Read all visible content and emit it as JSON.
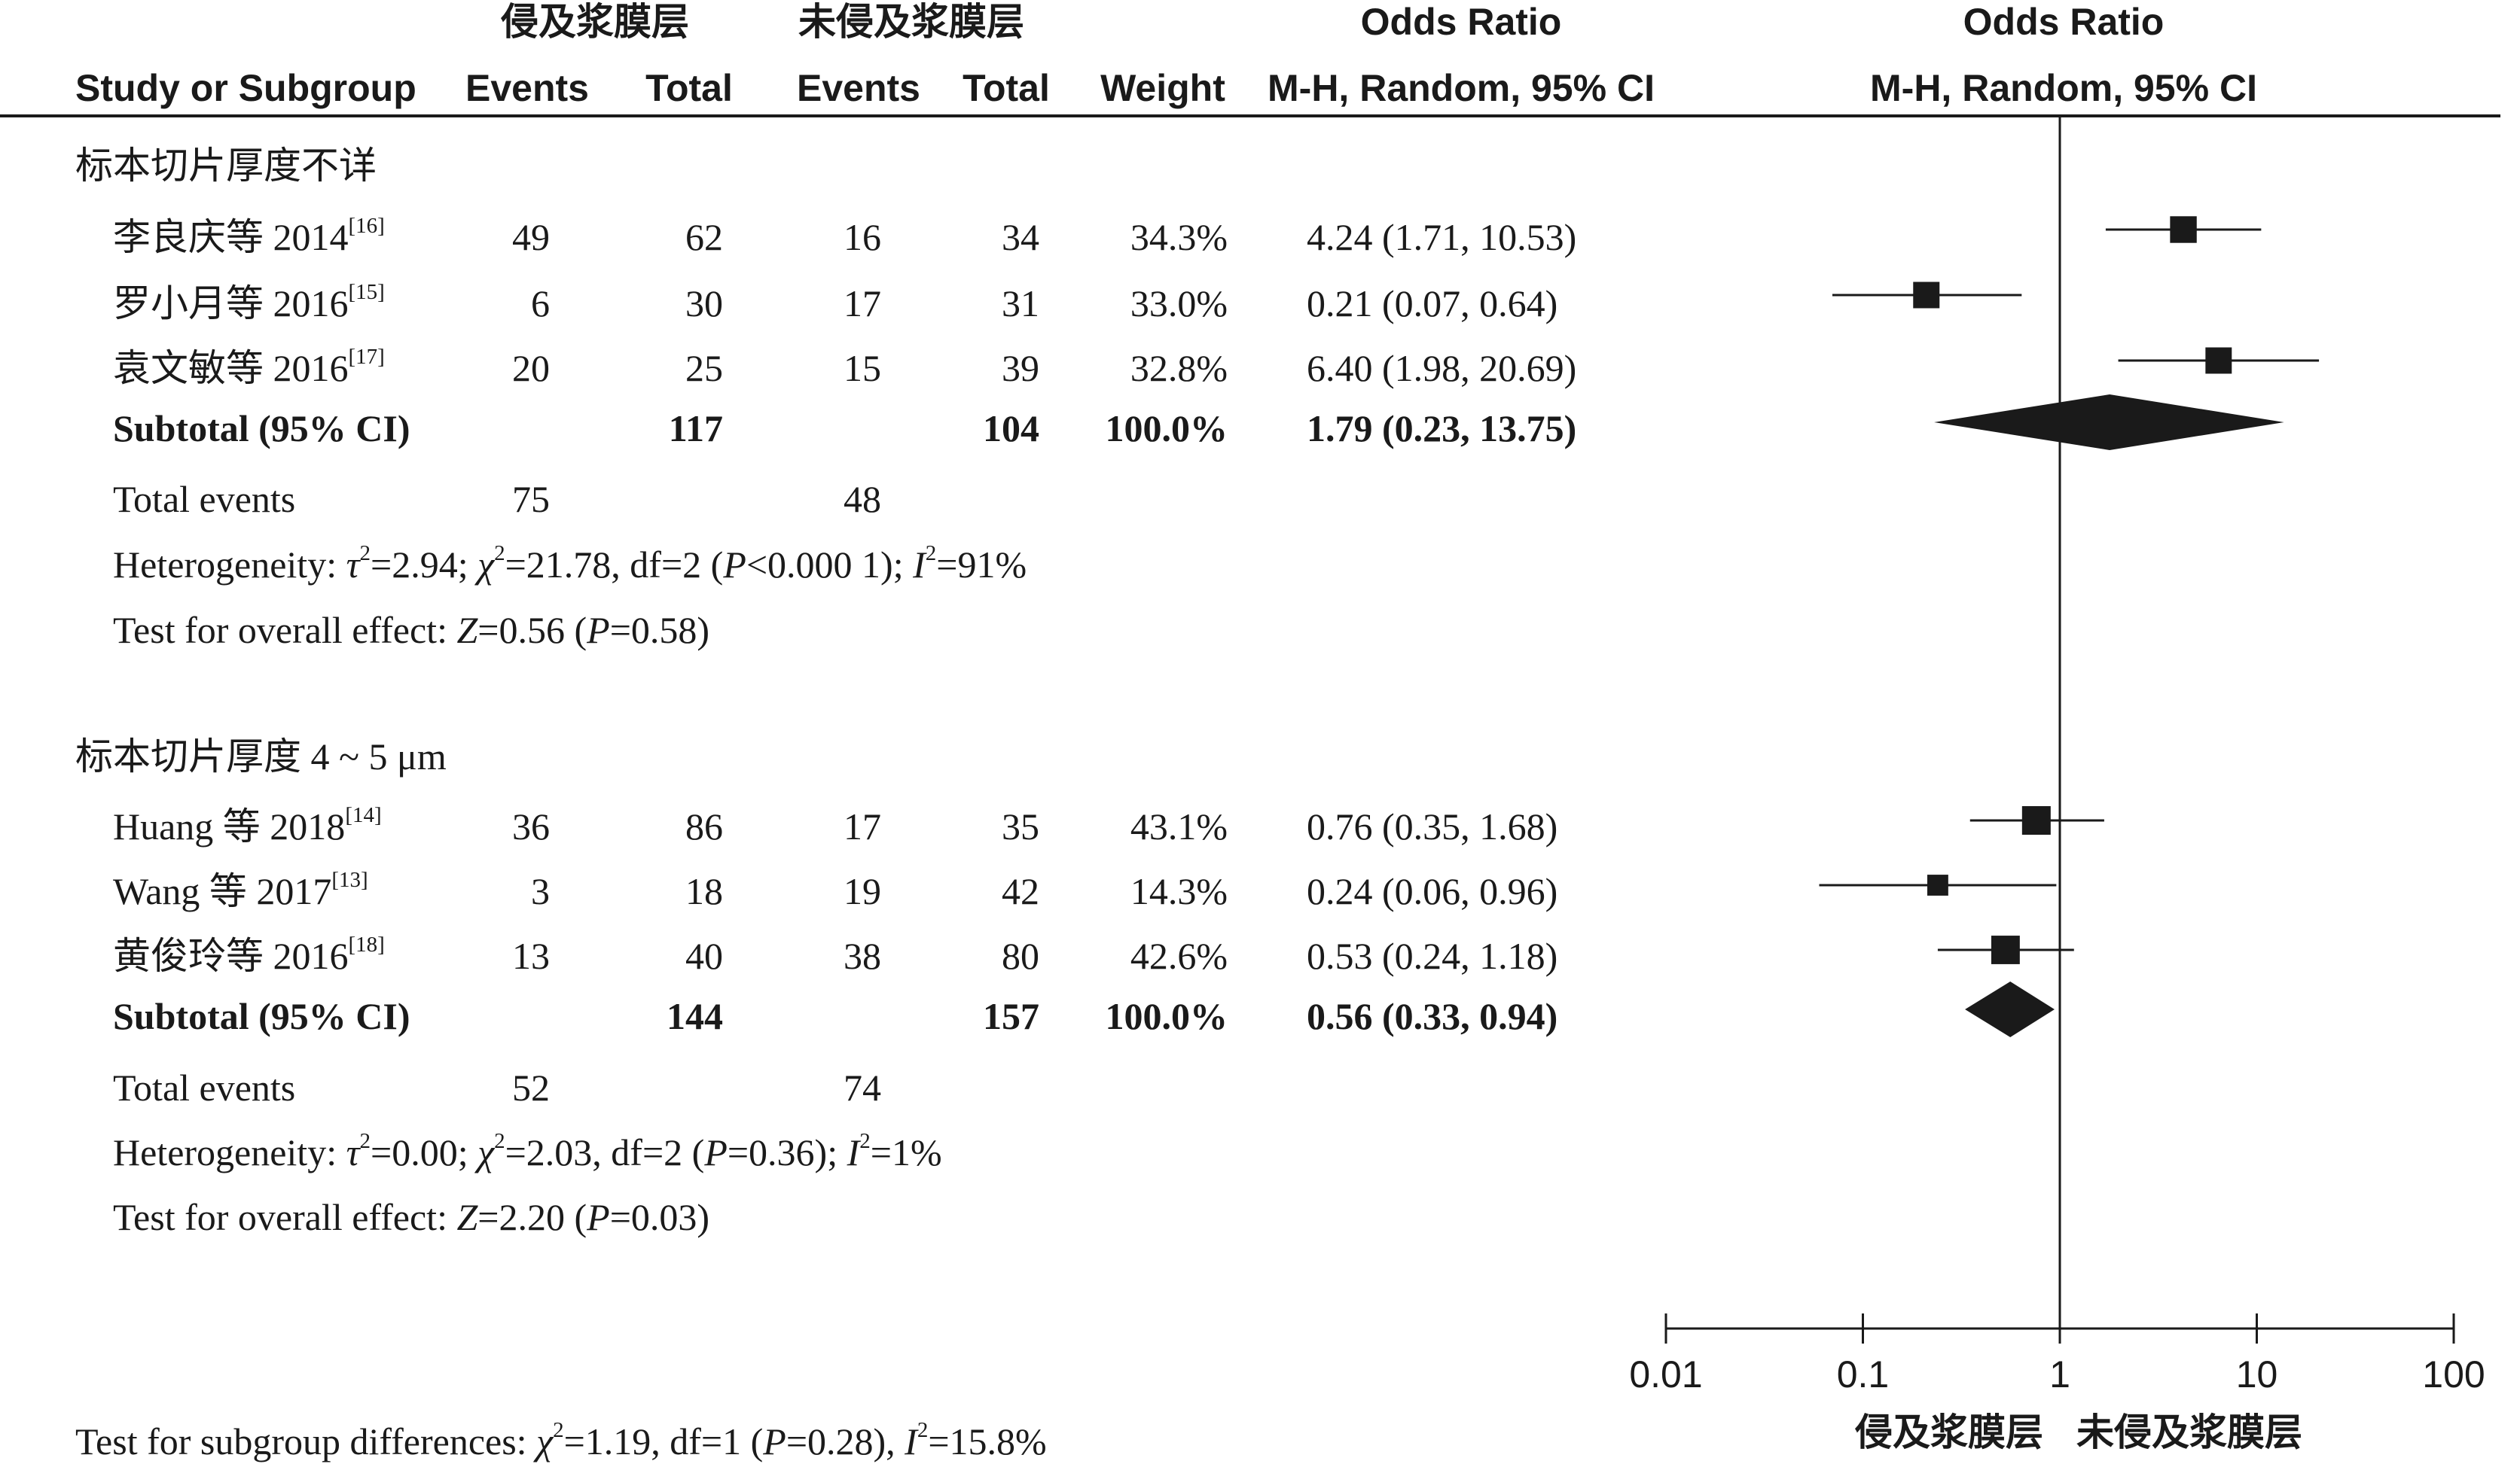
{
  "header": {
    "group1": "侵及浆膜层",
    "group2": "未侵及浆膜层",
    "study": "Study or Subgroup",
    "events": "Events",
    "total": "Total",
    "weight": "Weight",
    "or_title": "Odds Ratio",
    "or_method": "M-H, Random, 95% CI"
  },
  "subgroups": [
    {
      "title": "标本切片厚度不详",
      "studies": [
        {
          "name": "李良庆等 2014",
          "ref": "[16]",
          "e1": "49",
          "t1": "62",
          "e2": "16",
          "t2": "34",
          "weight": "34.3%",
          "ci": "4.24 (1.71, 10.53)"
        },
        {
          "name": "罗小月等 2016",
          "ref": "[15]",
          "e1": "6",
          "t1": "30",
          "e2": "17",
          "t2": "31",
          "weight": "33.0%",
          "ci": "0.21 (0.07, 0.64)"
        },
        {
          "name": "袁文敏等 2016",
          "ref": "[17]",
          "e1": "20",
          "t1": "25",
          "e2": "15",
          "t2": "39",
          "weight": "32.8%",
          "ci": "6.40 (1.98, 20.69)"
        }
      ],
      "subtotal": {
        "label": "Subtotal (95% CI)",
        "t1": "117",
        "t2": "104",
        "weight": "100.0%",
        "ci": "1.79 (0.23, 13.75)"
      },
      "total_events": {
        "label": "Total events",
        "e1": "75",
        "e2": "48"
      },
      "heterogeneity": {
        "prefix": "Heterogeneity: ",
        "tau2": "τ",
        "tau2_val": "=2.94; ",
        "chi2": "χ",
        "chi2_val": "=21.78, df=2 (",
        "p": "P",
        "p_val": "<0.000 1); ",
        "i2": "I",
        "i2_val": "=91%"
      },
      "overall": {
        "prefix": "Test for overall effect: ",
        "z": "Z",
        "z_val": "=0.56 (",
        "p": "P",
        "p_val": "=0.58)"
      }
    },
    {
      "title": "标本切片厚度 4 ~ 5 μm",
      "studies": [
        {
          "name": "Huang 等 2018",
          "ref": "[14]",
          "e1": "36",
          "t1": "86",
          "e2": "17",
          "t2": "35",
          "weight": "43.1%",
          "ci": "0.76 (0.35, 1.68)"
        },
        {
          "name": "Wang 等 2017",
          "ref": "[13]",
          "e1": "3",
          "t1": "18",
          "e2": "19",
          "t2": "42",
          "weight": "14.3%",
          "ci": "0.24 (0.06, 0.96)"
        },
        {
          "name": "黄俊玲等 2016",
          "ref": "[18]",
          "e1": "13",
          "t1": "40",
          "e2": "38",
          "t2": "80",
          "weight": "42.6%",
          "ci": "0.53 (0.24, 1.18)"
        }
      ],
      "subtotal": {
        "label": "Subtotal (95% CI)",
        "t1": "144",
        "t2": "157",
        "weight": "100.0%",
        "ci": "0.56 (0.33, 0.94)"
      },
      "total_events": {
        "label": "Total events",
        "e1": "52",
        "e2": "74"
      },
      "heterogeneity": {
        "prefix": "Heterogeneity: ",
        "tau2": "τ",
        "tau2_val": "=0.00; ",
        "chi2": "χ",
        "chi2_val": "=2.03, df=2 (",
        "p": "P",
        "p_val": "=0.36); ",
        "i2": "I",
        "i2_val": "=1%"
      },
      "overall": {
        "prefix": "Test for overall effect: ",
        "z": "Z",
        "z_val": "=2.20 (",
        "p": "P",
        "p_val": "=0.03)"
      }
    }
  ],
  "subgroup_diff": {
    "prefix": "Test for subgroup differences: ",
    "chi2": "χ",
    "chi2_val": "=1.19, df=1 (",
    "p": "P",
    "p_val": "=0.28), ",
    "i2": "I",
    "i2_val": "=15.8%"
  },
  "superscript2": "2",
  "chart_data": {
    "type": "forest",
    "xscale": "log",
    "xlim": [
      0.01,
      100
    ],
    "ticks": [
      0.01,
      0.1,
      1,
      10,
      100
    ],
    "tick_labels": [
      "0.01",
      "0.1",
      "1",
      "10",
      "100"
    ],
    "favours_left": "侵及浆膜层",
    "favours_right": "未侵及浆膜层",
    "reference_line": 1,
    "studies": [
      {
        "or": 4.24,
        "lo": 1.71,
        "hi": 10.53,
        "weight": 34.3
      },
      {
        "or": 0.21,
        "lo": 0.07,
        "hi": 0.64,
        "weight": 33.0
      },
      {
        "or": 6.4,
        "lo": 1.98,
        "hi": 20.69,
        "weight": 32.8
      },
      {
        "or": 0.76,
        "lo": 0.35,
        "hi": 1.68,
        "weight": 43.1
      },
      {
        "or": 0.24,
        "lo": 0.06,
        "hi": 0.96,
        "weight": 14.3
      },
      {
        "or": 0.53,
        "lo": 0.24,
        "hi": 1.18,
        "weight": 42.6
      }
    ],
    "subtotals": [
      {
        "or": 1.79,
        "lo": 0.23,
        "hi": 13.75
      },
      {
        "or": 0.56,
        "lo": 0.33,
        "hi": 0.94
      }
    ]
  }
}
